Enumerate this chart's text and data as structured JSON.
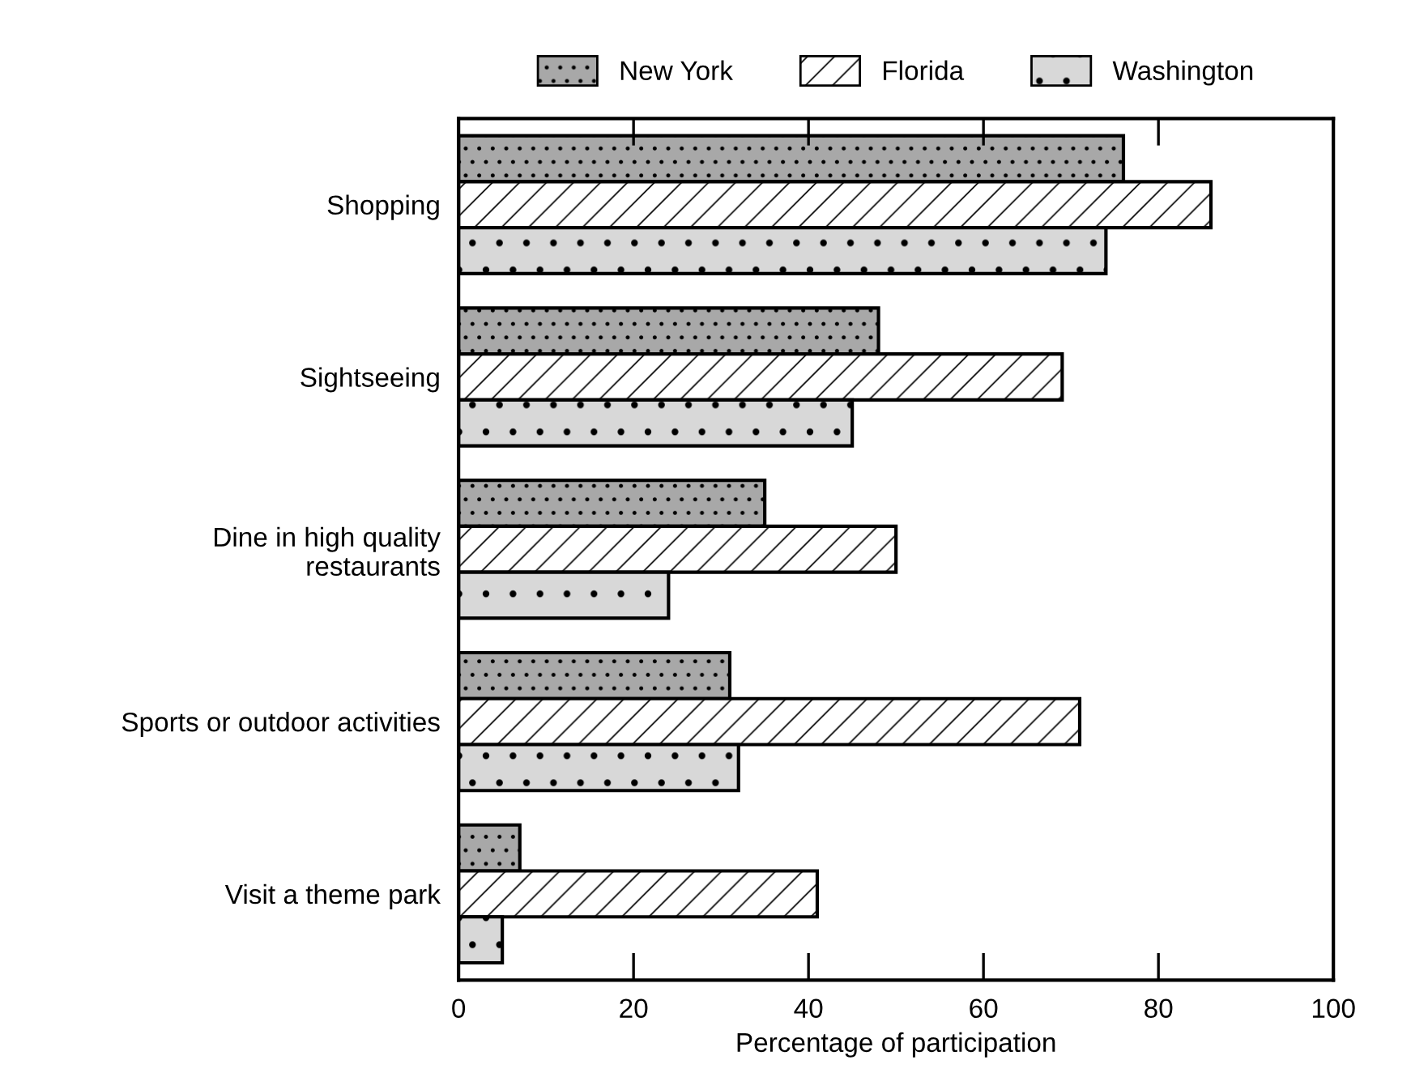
{
  "chart_data": {
    "type": "bar",
    "orientation": "horizontal",
    "xlabel": "Percentage of participation",
    "categories": [
      "Shopping",
      "Sightseeing",
      "Dine in high quality\nrestaurants",
      "Sports or outdoor activities",
      "Visit a theme park"
    ],
    "series": [
      {
        "name": "New York",
        "color": "#a8a8a8",
        "values": [
          76,
          48,
          35,
          31,
          7
        ]
      },
      {
        "name": "Florida",
        "color": "#ffffff",
        "values": [
          86,
          69,
          50,
          71,
          41
        ]
      },
      {
        "name": "Washington",
        "color": "#d8d8d8",
        "values": [
          74,
          45,
          24,
          32,
          5
        ]
      }
    ],
    "xlim": [
      0,
      100
    ],
    "xticks": [
      0,
      20,
      40,
      60,
      80,
      100
    ],
    "grid": false,
    "legend": "top"
  }
}
